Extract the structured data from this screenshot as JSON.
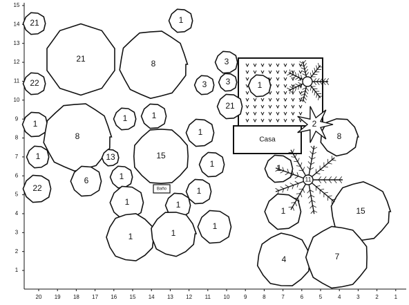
{
  "x_ticks": [
    "20",
    "19",
    "18",
    "17",
    "16",
    "15",
    "14",
    "13",
    "12",
    "11",
    "10",
    "9",
    "8",
    "7",
    "6",
    "5",
    "4",
    "3",
    "2",
    "1"
  ],
  "y_ticks": [
    "15",
    "14",
    "13",
    "12",
    "11",
    "10",
    "9",
    "8",
    "7",
    "6",
    "5",
    "4",
    "3",
    "2",
    "1"
  ],
  "nodes": [
    {
      "label": "21"
    },
    {
      "label": "1"
    },
    {
      "label": "21"
    },
    {
      "label": "8"
    },
    {
      "label": "22"
    },
    {
      "label": "3"
    },
    {
      "label": "3"
    },
    {
      "label": "3"
    },
    {
      "label": "1"
    },
    {
      "label": "21"
    },
    {
      "label": "1"
    },
    {
      "label": "8"
    },
    {
      "label": "1"
    },
    {
      "label": "1"
    },
    {
      "label": "1"
    },
    {
      "label": "8"
    },
    {
      "label": "1"
    },
    {
      "label": "13"
    },
    {
      "label": "15"
    },
    {
      "label": "1"
    },
    {
      "label": "6"
    },
    {
      "label": "1"
    },
    {
      "label": "1"
    },
    {
      "label": "22"
    },
    {
      "label": "1"
    },
    {
      "label": "1"
    },
    {
      "label": "1"
    },
    {
      "label": "15"
    },
    {
      "label": "1"
    },
    {
      "label": "1"
    },
    {
      "label": "1"
    },
    {
      "label": "1"
    },
    {
      "label": "4"
    },
    {
      "label": "7"
    }
  ],
  "palms": [
    {
      "label": "2"
    },
    {
      "label": "11"
    }
  ],
  "house": {
    "label": "Casa"
  },
  "bath": {
    "label": "Baño"
  }
}
